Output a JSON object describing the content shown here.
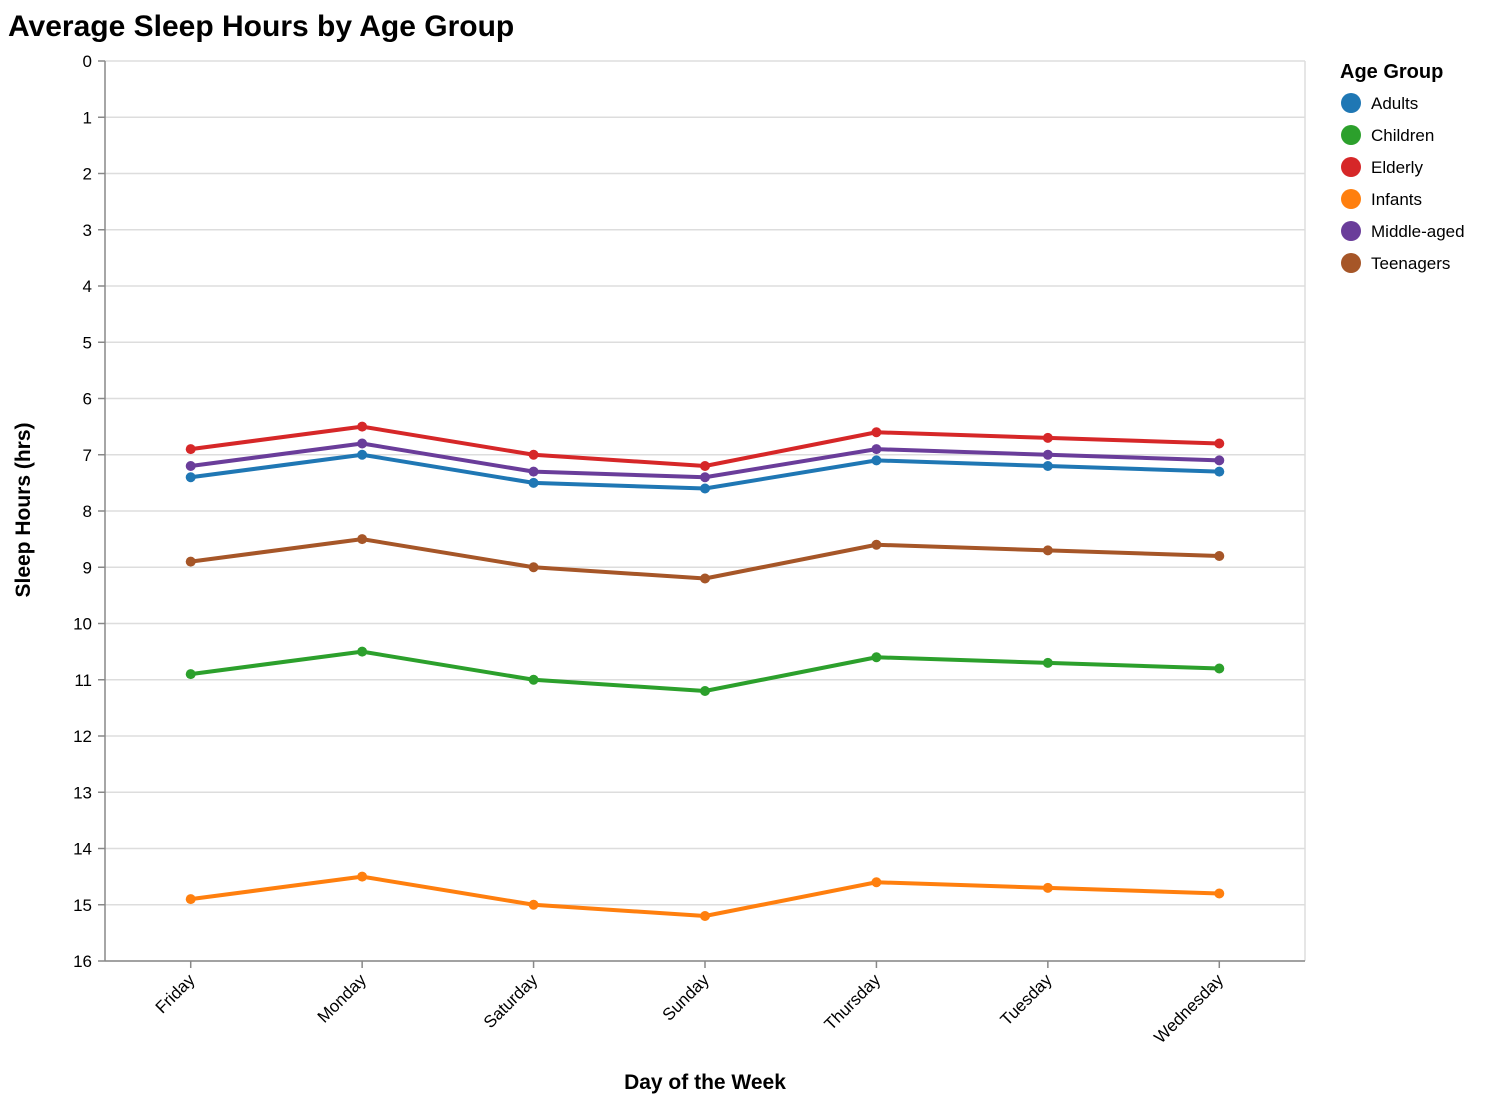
{
  "chart_data": {
    "type": "line",
    "title": "Average Sleep Hours by Age Group",
    "xlabel": "Day of the Week",
    "ylabel": "Sleep Hours (hrs)",
    "ylim": [
      0,
      16
    ],
    "y_reversed": true,
    "y_ticks": [
      0,
      1,
      2,
      3,
      4,
      5,
      6,
      7,
      8,
      9,
      10,
      11,
      12,
      13,
      14,
      15,
      16
    ],
    "grid": true,
    "legend": {
      "title": "Age Group",
      "position": "top-right"
    },
    "categories": [
      "Friday",
      "Monday",
      "Saturday",
      "Sunday",
      "Thursday",
      "Tuesday",
      "Wednesday"
    ],
    "series": [
      {
        "name": "Adults",
        "color": "#1f77b4",
        "values": [
          7.4,
          7.0,
          7.5,
          7.6,
          7.1,
          7.2,
          7.3
        ]
      },
      {
        "name": "Children",
        "color": "#2ca02c",
        "values": [
          10.9,
          10.5,
          11.0,
          11.2,
          10.6,
          10.7,
          10.8
        ]
      },
      {
        "name": "Elderly",
        "color": "#d62728",
        "values": [
          6.9,
          6.5,
          7.0,
          7.2,
          6.6,
          6.7,
          6.8
        ]
      },
      {
        "name": "Infants",
        "color": "#ff7f0e",
        "values": [
          14.9,
          14.5,
          15.0,
          15.2,
          14.6,
          14.7,
          14.8
        ]
      },
      {
        "name": "Middle-aged",
        "color": "#6a3d9a",
        "values": [
          7.2,
          6.8,
          7.3,
          7.4,
          6.9,
          7.0,
          7.1
        ]
      },
      {
        "name": "Teenagers",
        "color": "#a65628",
        "values": [
          8.9,
          8.5,
          9.0,
          9.2,
          8.6,
          8.7,
          8.8
        ]
      }
    ]
  }
}
